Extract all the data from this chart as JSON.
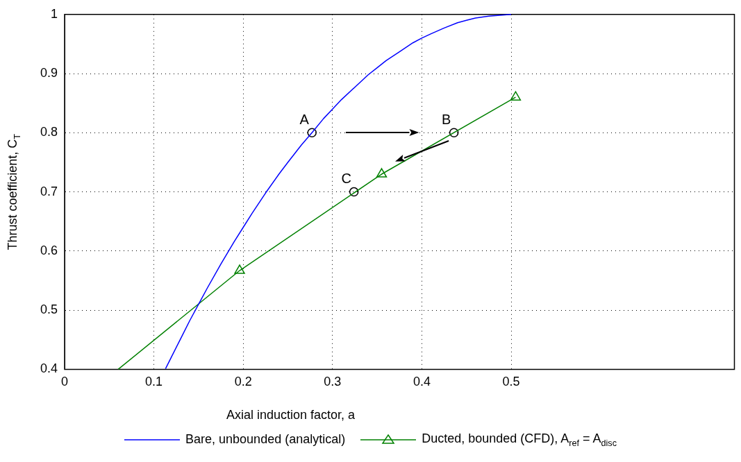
{
  "chart_data": {
    "type": "line",
    "xlabel": "Axial induction factor, a",
    "ylabel": "Thrust coefficient, C$_{T}$",
    "xlim": [
      0,
      0.75
    ],
    "xticks": [
      0,
      0.1,
      0.2,
      0.3,
      0.4,
      0.5
    ],
    "ylim": [
      0.4,
      1
    ],
    "yticks": [
      0.4,
      0.5,
      0.6,
      0.7,
      0.8,
      0.9,
      1
    ],
    "grid": true,
    "legend": "bottom",
    "line_style": "solid",
    "series": [
      {
        "name": "Bare, unbounded (analytical)",
        "color": "#0000ff",
        "marker": "none",
        "x": [
          0.113,
          0.12,
          0.13,
          0.14,
          0.15,
          0.16,
          0.175,
          0.19,
          0.2,
          0.21,
          0.225,
          0.24,
          0.25,
          0.265,
          0.277,
          0.29,
          0.3,
          0.31,
          0.325,
          0.34,
          0.35,
          0.36,
          0.375,
          0.39,
          0.4,
          0.41,
          0.425,
          0.44,
          0.45,
          0.46,
          0.475,
          0.49,
          0.5
        ],
        "values": [
          0.401,
          0.422,
          0.452,
          0.482,
          0.51,
          0.538,
          0.578,
          0.616,
          0.64,
          0.664,
          0.698,
          0.73,
          0.75,
          0.779,
          0.8,
          0.824,
          0.84,
          0.856,
          0.877,
          0.898,
          0.91,
          0.922,
          0.937,
          0.952,
          0.96,
          0.967,
          0.977,
          0.986,
          0.99,
          0.994,
          0.997,
          0.999,
          1.0
        ]
      },
      {
        "name": "Ducted, bounded (CFD), A$_{ref}$ = A$_{disc}$",
        "color": "#008000",
        "marker": "triangle",
        "x": [
          0.06,
          0.196,
          0.355,
          0.505
        ],
        "values": [
          0.4,
          0.567,
          0.73,
          0.86
        ]
      },
      {
        "type": "scatter",
        "color": "#000000",
        "marker": "circle",
        "x": [
          0.277,
          0.436,
          0.324
        ],
        "values": [
          0.8,
          0.8,
          0.7
        ]
      }
    ],
    "annotations": [
      {
        "text": "A",
        "x": 0.277,
        "y": 0.8
      },
      {
        "text": "B",
        "x": 0.436,
        "y": 0.8
      },
      {
        "text": "C",
        "x": 0.324,
        "y": 0.7
      }
    ]
  }
}
